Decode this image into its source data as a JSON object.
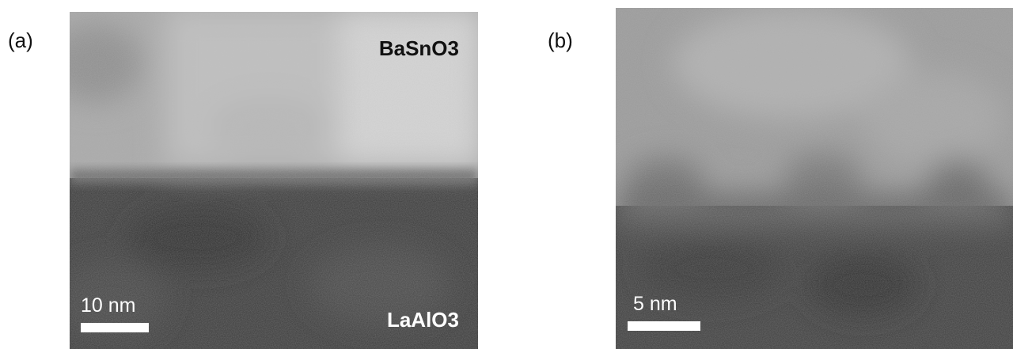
{
  "panels": [
    {
      "label": "(a)",
      "scale_bar": "10 nm",
      "layers": [
        "BaSnO3",
        "LaAlO3"
      ]
    },
    {
      "label": "(b)",
      "scale_bar": "5 nm"
    }
  ]
}
